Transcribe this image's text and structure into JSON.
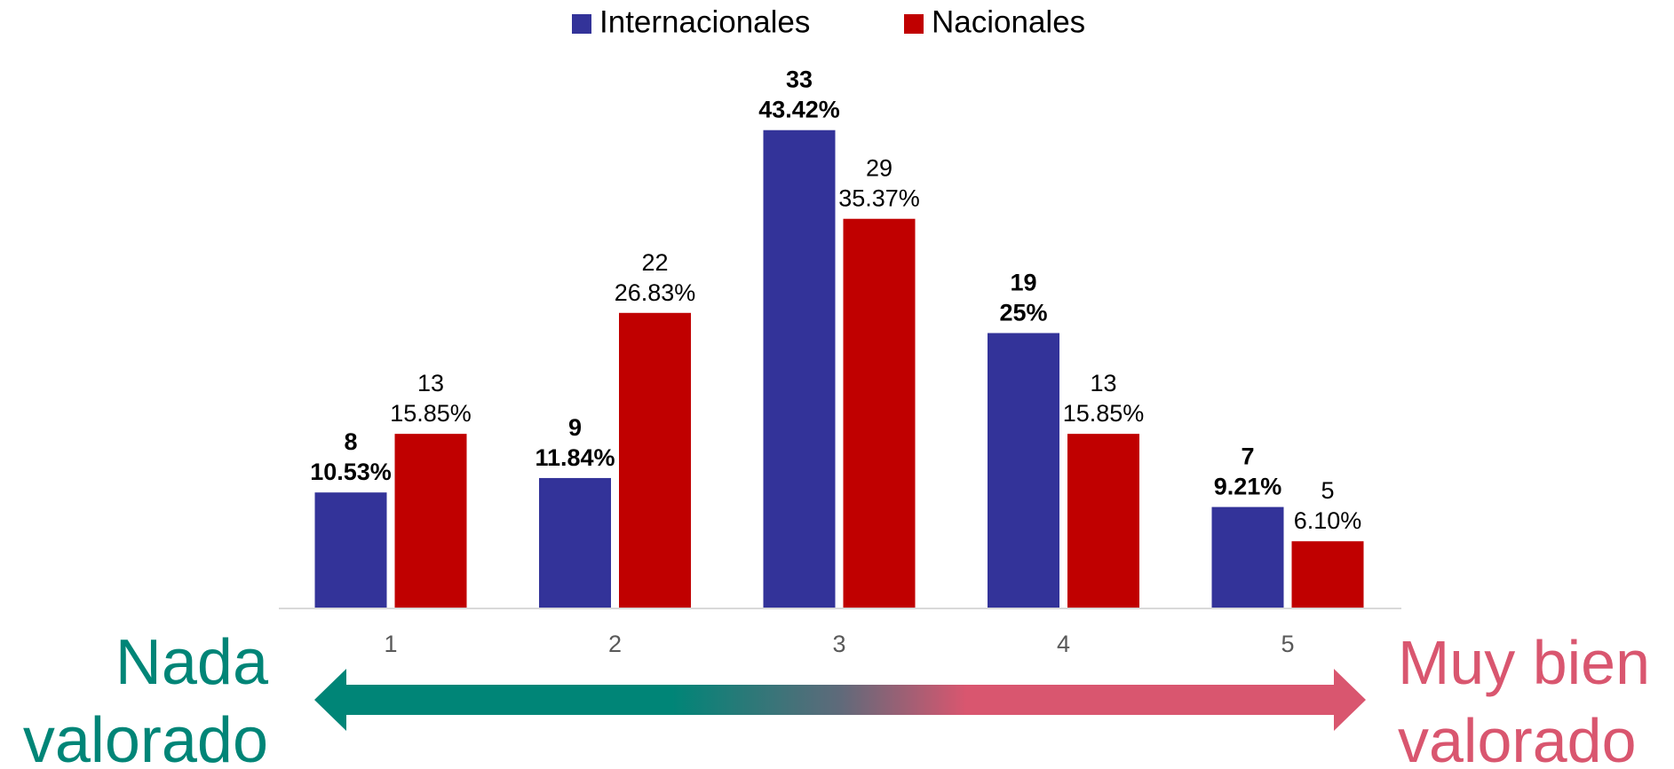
{
  "chart_data": {
    "type": "bar",
    "categories": [
      "1",
      "2",
      "3",
      "4",
      "5"
    ],
    "series": [
      {
        "name": "Internacionales",
        "color": "#333399",
        "values": [
          10.53,
          11.84,
          43.42,
          25,
          9.21
        ],
        "value_labels": [
          "10.53%",
          "11.84%",
          "43.42%",
          "25%",
          "9.21%"
        ],
        "counts": [
          8,
          9,
          33,
          19,
          7
        ]
      },
      {
        "name": "Nacionales",
        "color": "#c00000",
        "values": [
          15.85,
          26.83,
          35.37,
          15.85,
          6.1
        ],
        "value_labels": [
          "15.85%",
          "26.83%",
          "35.37%",
          "15.85%",
          "6.10%"
        ],
        "counts": [
          13,
          22,
          29,
          13,
          5
        ]
      }
    ],
    "ylim": [
      0,
      50
    ],
    "legend": "top",
    "left_annotation": [
      "Nada",
      "valorado"
    ],
    "right_annotation": [
      "Muy bien",
      "valorado"
    ]
  }
}
